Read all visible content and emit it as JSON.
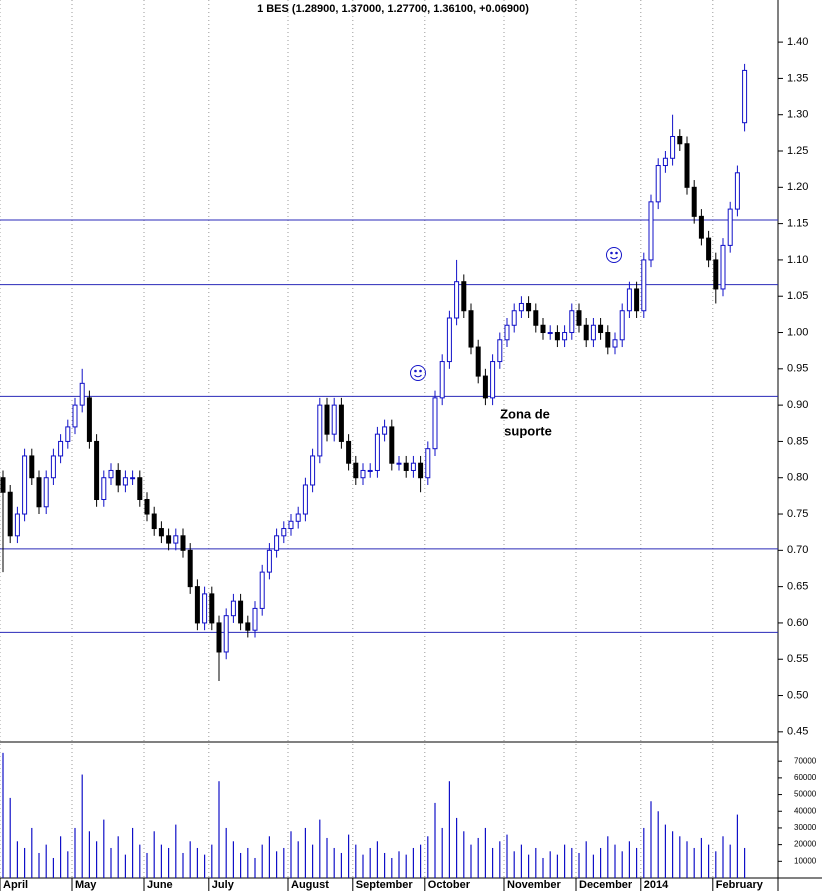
{
  "chart_data": {
    "type": "candlestick",
    "title": "1 BES (1.28900, 1.37000, 1.27700, 1.36100, +0.06900)",
    "categories": [
      "April",
      null,
      null,
      null,
      null,
      null,
      null,
      null,
      null,
      null,
      "May",
      null,
      null,
      null,
      null,
      null,
      null,
      null,
      null,
      null,
      "June",
      null,
      null,
      null,
      null,
      null,
      null,
      null,
      null,
      "July",
      null,
      null,
      null,
      null,
      null,
      null,
      null,
      null,
      null,
      null,
      "August",
      null,
      null,
      null,
      null,
      null,
      null,
      null,
      null,
      "September",
      null,
      null,
      null,
      null,
      null,
      null,
      null,
      null,
      null,
      "October",
      null,
      null,
      null,
      null,
      null,
      null,
      null,
      null,
      null,
      null,
      "November",
      null,
      null,
      null,
      null,
      null,
      null,
      null,
      null,
      null,
      "December",
      null,
      null,
      null,
      null,
      null,
      null,
      null,
      null,
      "2014",
      null,
      null,
      null,
      null,
      null,
      null,
      null,
      null,
      null,
      "February",
      null,
      null,
      null,
      null
    ],
    "open": [
      0.8,
      0.78,
      0.72,
      0.75,
      0.83,
      0.8,
      0.76,
      0.8,
      0.83,
      0.85,
      0.87,
      0.9,
      0.91,
      0.85,
      0.77,
      0.8,
      0.81,
      0.79,
      0.8,
      0.8,
      0.77,
      0.75,
      0.73,
      0.72,
      0.71,
      0.72,
      0.7,
      0.65,
      0.6,
      0.64,
      0.6,
      0.56,
      0.61,
      0.63,
      0.6,
      0.59,
      0.62,
      0.67,
      0.7,
      0.72,
      0.73,
      0.74,
      0.75,
      0.79,
      0.83,
      0.9,
      0.86,
      0.9,
      0.85,
      0.82,
      0.8,
      0.81,
      0.81,
      0.86,
      0.87,
      0.82,
      0.82,
      0.81,
      0.82,
      0.8,
      0.84,
      0.91,
      0.96,
      1.02,
      1.07,
      1.03,
      0.98,
      0.94,
      0.91,
      0.96,
      0.99,
      1.01,
      1.03,
      1.04,
      1.03,
      1.01,
      1.0,
      1.0,
      0.99,
      1.0,
      1.03,
      1.01,
      0.99,
      1.01,
      1.0,
      0.98,
      0.99,
      1.03,
      1.06,
      1.03,
      1.1,
      1.18,
      1.23,
      1.24,
      1.27,
      1.26,
      1.2,
      1.16,
      1.13,
      1.1,
      1.06,
      1.12,
      1.17,
      1.289
    ],
    "high": [
      0.81,
      0.79,
      0.76,
      0.84,
      0.84,
      0.81,
      0.81,
      0.84,
      0.86,
      0.88,
      0.91,
      0.95,
      0.92,
      0.86,
      0.81,
      0.82,
      0.82,
      0.81,
      0.81,
      0.81,
      0.78,
      0.76,
      0.74,
      0.73,
      0.73,
      0.73,
      0.71,
      0.66,
      0.65,
      0.65,
      0.61,
      0.62,
      0.64,
      0.64,
      0.61,
      0.63,
      0.68,
      0.71,
      0.73,
      0.74,
      0.75,
      0.76,
      0.8,
      0.84,
      0.91,
      0.91,
      0.91,
      0.91,
      0.86,
      0.83,
      0.82,
      0.82,
      0.87,
      0.88,
      0.88,
      0.83,
      0.83,
      0.83,
      0.83,
      0.85,
      0.92,
      0.97,
      1.03,
      1.1,
      1.08,
      1.04,
      0.99,
      0.95,
      0.97,
      1.0,
      1.02,
      1.04,
      1.05,
      1.05,
      1.04,
      1.02,
      1.01,
      1.01,
      1.01,
      1.04,
      1.04,
      1.02,
      1.02,
      1.02,
      1.01,
      1.0,
      1.04,
      1.07,
      1.07,
      1.11,
      1.19,
      1.24,
      1.25,
      1.3,
      1.28,
      1.27,
      1.21,
      1.17,
      1.14,
      1.11,
      1.13,
      1.18,
      1.23,
      1.37
    ],
    "low": [
      0.67,
      0.71,
      0.71,
      0.74,
      0.79,
      0.75,
      0.75,
      0.79,
      0.82,
      0.84,
      0.86,
      0.89,
      0.84,
      0.76,
      0.76,
      0.79,
      0.78,
      0.78,
      0.79,
      0.76,
      0.74,
      0.72,
      0.71,
      0.7,
      0.7,
      0.69,
      0.64,
      0.59,
      0.59,
      0.59,
      0.52,
      0.55,
      0.6,
      0.59,
      0.58,
      0.58,
      0.61,
      0.66,
      0.69,
      0.71,
      0.72,
      0.73,
      0.74,
      0.78,
      0.82,
      0.85,
      0.85,
      0.84,
      0.81,
      0.79,
      0.79,
      0.8,
      0.8,
      0.85,
      0.81,
      0.81,
      0.8,
      0.8,
      0.78,
      0.79,
      0.83,
      0.9,
      0.95,
      1.01,
      1.02,
      0.97,
      0.93,
      0.9,
      0.9,
      0.95,
      0.98,
      1.0,
      1.02,
      1.02,
      1.0,
      0.99,
      0.99,
      0.98,
      0.98,
      0.99,
      1.0,
      0.98,
      0.98,
      0.99,
      0.97,
      0.97,
      0.98,
      1.02,
      1.02,
      1.02,
      1.09,
      1.17,
      1.22,
      1.23,
      1.25,
      1.19,
      1.15,
      1.12,
      1.09,
      1.04,
      1.05,
      1.11,
      1.16,
      1.277
    ],
    "close": [
      0.78,
      0.72,
      0.75,
      0.83,
      0.8,
      0.76,
      0.8,
      0.83,
      0.85,
      0.87,
      0.9,
      0.93,
      0.85,
      0.77,
      0.8,
      0.81,
      0.79,
      0.8,
      0.8,
      0.77,
      0.75,
      0.73,
      0.72,
      0.71,
      0.72,
      0.7,
      0.65,
      0.6,
      0.64,
      0.6,
      0.56,
      0.61,
      0.63,
      0.6,
      0.59,
      0.62,
      0.67,
      0.7,
      0.72,
      0.73,
      0.74,
      0.75,
      0.79,
      0.83,
      0.9,
      0.86,
      0.9,
      0.85,
      0.82,
      0.8,
      0.81,
      0.81,
      0.86,
      0.87,
      0.82,
      0.82,
      0.81,
      0.82,
      0.8,
      0.84,
      0.91,
      0.96,
      1.02,
      1.07,
      1.03,
      0.98,
      0.94,
      0.91,
      0.96,
      0.99,
      1.01,
      1.03,
      1.04,
      1.03,
      1.01,
      1.0,
      1.0,
      0.99,
      1.0,
      1.03,
      1.01,
      0.99,
      1.01,
      1.0,
      0.98,
      0.99,
      1.03,
      1.06,
      1.03,
      1.1,
      1.18,
      1.23,
      1.24,
      1.27,
      1.26,
      1.2,
      1.16,
      1.13,
      1.1,
      1.06,
      1.12,
      1.17,
      1.22,
      1.361
    ],
    "up_color": "#1010c8",
    "down_color": "#000000",
    "ylim": [
      0.436,
      1.458
    ],
    "yticks": [
      0.45,
      {
        "value": 0.5,
        "label": "0.50"
      },
      0.55,
      {
        "value": 0.6,
        "label": "0.60"
      },
      0.65,
      {
        "value": 0.7,
        "label": "0.70"
      },
      0.75,
      {
        "value": 0.8,
        "label": "0.80"
      },
      0.85,
      {
        "value": 0.9,
        "label": "0.90"
      },
      0.95,
      {
        "value": 1.0,
        "label": "1.00"
      },
      1.05,
      {
        "value": 1.1,
        "label": "1.10"
      },
      1.15,
      {
        "value": 1.2,
        "label": "1.20"
      },
      1.25,
      {
        "value": 1.3,
        "label": "1.30"
      },
      1.35,
      {
        "value": 1.4,
        "label": "1.40"
      }
    ],
    "support_lines": {
      "values": [
        1.155,
        1.066,
        0.912,
        0.702,
        0.587
      ],
      "color": "#2a2ab8"
    },
    "annotations": [
      "Zona de",
      "suporte"
    ],
    "annotation_color": "#1515c8",
    "volume": {
      "type": "bar",
      "color": "#1010c8",
      "values": [
        75000,
        48000,
        22000,
        18000,
        30000,
        15000,
        20000,
        12000,
        25000,
        16000,
        30000,
        62000,
        28000,
        22000,
        35000,
        18000,
        25000,
        14000,
        30000,
        20000,
        15000,
        28000,
        20000,
        18000,
        32000,
        15000,
        22000,
        18000,
        14000,
        20000,
        58000,
        30000,
        22000,
        15000,
        18000,
        12000,
        20000,
        25000,
        16000,
        18000,
        28000,
        22000,
        30000,
        20000,
        35000,
        24000,
        18000,
        15000,
        26000,
        20000,
        14000,
        18000,
        22000,
        15000,
        12000,
        16000,
        14000,
        18000,
        20000,
        25000,
        45000,
        30000,
        58000,
        36000,
        28000,
        20000,
        24000,
        30000,
        18000,
        22000,
        26000,
        16000,
        20000,
        14000,
        18000,
        12000,
        16000,
        14000,
        20000,
        18000,
        15000,
        22000,
        14000,
        18000,
        25000,
        20000,
        16000,
        22000,
        18000,
        30000,
        46000,
        40000,
        32000,
        28000,
        25000,
        22000,
        18000,
        24000,
        20000,
        16000,
        25000,
        20000,
        38000,
        18000
      ],
      "ylim": [
        0,
        81500
      ],
      "yticks": [
        10000,
        20000,
        30000,
        40000,
        50000,
        60000,
        70000
      ]
    }
  }
}
